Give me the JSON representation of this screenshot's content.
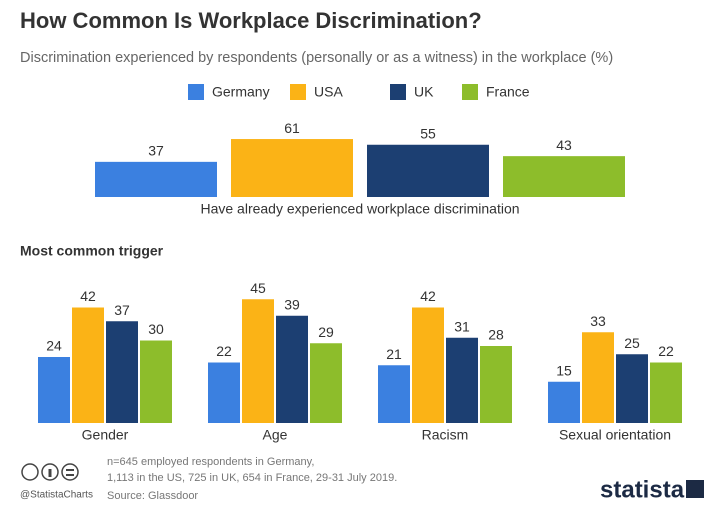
{
  "header": {
    "title": "How Common Is Workplace Discrimination?",
    "subtitle": "Discrimination experienced by respondents (personally or as a witness) in the workplace (%)"
  },
  "chart_data": [
    {
      "type": "bar",
      "categories": [
        "Have already experienced workplace discrimination"
      ],
      "series": [
        {
          "name": "Germany",
          "color": "#3b80e0",
          "values": [
            37
          ]
        },
        {
          "name": "USA",
          "color": "#fbb316",
          "values": [
            61
          ]
        },
        {
          "name": "UK",
          "color": "#1c3f72",
          "values": [
            55
          ]
        },
        {
          "name": "France",
          "color": "#8dbd2b",
          "values": [
            43
          ]
        }
      ]
    },
    {
      "type": "bar",
      "title": "Most common trigger",
      "categories": [
        "Gender",
        "Age",
        "Racism",
        "Sexual orientation"
      ],
      "series": [
        {
          "color": "#3b80e0",
          "values": [
            24,
            22,
            21,
            15
          ]
        },
        {
          "color": "#fbb316",
          "values": [
            42,
            45,
            42,
            33
          ]
        },
        {
          "color": "#1c3f72",
          "values": [
            37,
            39,
            31,
            25
          ]
        },
        {
          "color": "#8dbd2b",
          "values": [
            30,
            29,
            28,
            22
          ]
        }
      ]
    }
  ],
  "footer": {
    "handle": "@StatistaCharts",
    "note": [
      "n=645 employed respondents in Germany,",
      "1,113 in the US, 725 in UK, 654 in France, 29-31 July 2019."
    ],
    "source": "Source: Glassdoor",
    "logo": "statista"
  }
}
